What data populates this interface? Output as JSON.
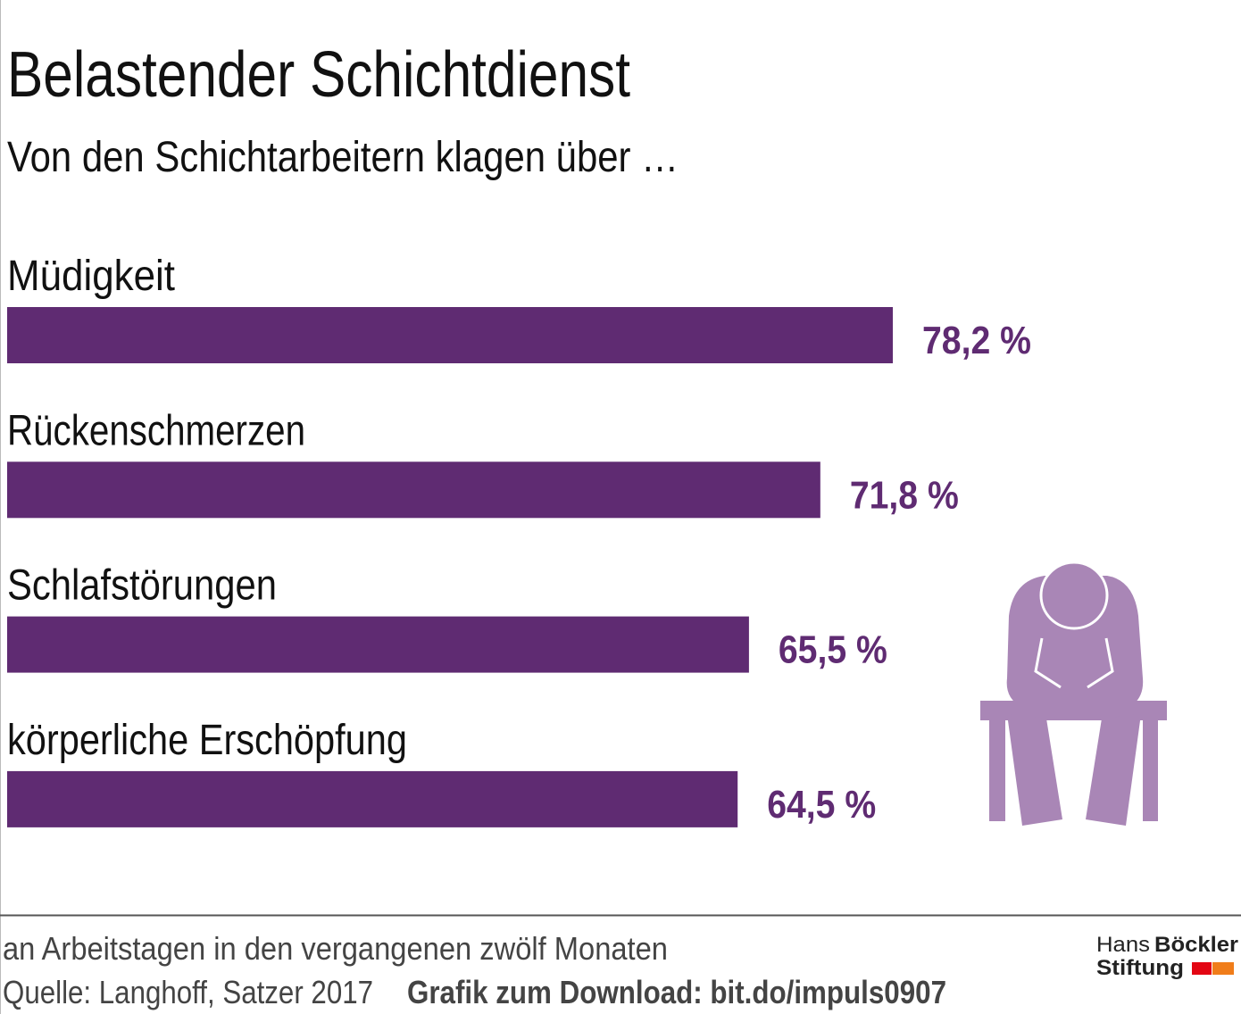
{
  "chart_data": {
    "type": "bar",
    "orientation": "horizontal",
    "title": "Belastender Schichtdienst",
    "subtitle": "Von den Schichtarbeitern klagen über …",
    "categories": [
      "Müdigkeit",
      "Rückenschmerzen",
      "Schlafstörungen",
      "körperliche Erschöpfung"
    ],
    "values": [
      78.2,
      71.8,
      65.5,
      64.5
    ],
    "value_labels": [
      "78,2 %",
      "71,8 %",
      "65,5 %",
      "64,5 %"
    ],
    "unit": "%",
    "xlim": [
      0,
      100
    ],
    "grid": false,
    "bar_color": "#5f2b72",
    "label_color": "#5f2b72",
    "illustration": "tired-person-sitting-on-bench-icon",
    "illustration_color": "#a986b6"
  },
  "footer": {
    "note": "an Arbeitstagen in den vergangenen zwölf Monaten",
    "source": "Quelle: Langhoff, Satzer 2017",
    "download": "Grafik zum Download: bit.do/impuls0907",
    "logo_line1_light": "Hans",
    "logo_line1_bold": "Böckler",
    "logo_line2": "Stiftung",
    "logo_colors": [
      "#e30613",
      "#f07d1a"
    ]
  }
}
